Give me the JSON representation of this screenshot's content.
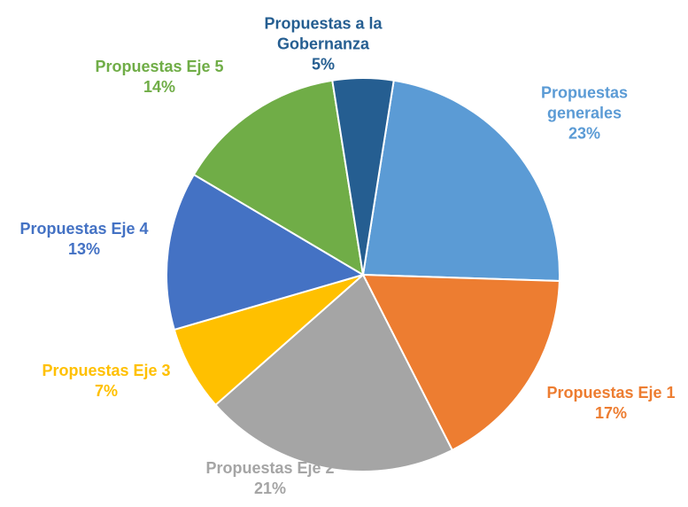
{
  "chart_data": {
    "type": "pie",
    "categories": [
      "Propuestas generales",
      "Propuestas Eje 1",
      "Propuestas Eje 2",
      "Propuestas Eje 3",
      "Propuestas Eje 4",
      "Propuestas Eje 5",
      "Propuestas a la Gobernanza"
    ],
    "values": [
      23,
      17,
      21,
      7,
      13,
      14,
      5
    ],
    "value_labels": [
      "23%",
      "17%",
      "21%",
      "7%",
      "13%",
      "14%",
      "5%"
    ],
    "colors": [
      "#5b9bd5",
      "#ed7d31",
      "#a5a5a5",
      "#ffc000",
      "#4472c4",
      "#70ad47",
      "#255e91"
    ]
  }
}
